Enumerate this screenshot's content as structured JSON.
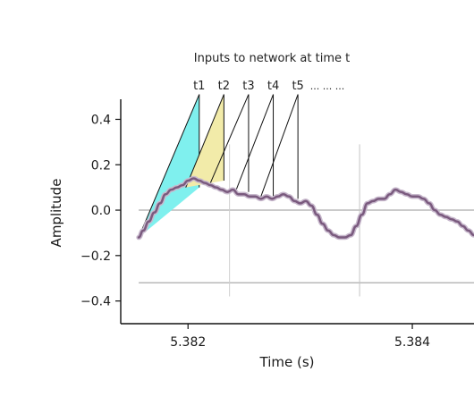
{
  "chart_data": {
    "type": "line",
    "title": "",
    "xlabel": "Time (s)",
    "ylabel": "Amplitude",
    "xlim": [
      5.3814,
      5.38455
    ],
    "ylim": [
      -0.5,
      0.52
    ],
    "x_ticks": [
      5.382,
      5.384
    ],
    "x_tick_labels": [
      "5.382",
      "5.384"
    ],
    "y_ticks": [
      0.4,
      0.2,
      0.0,
      -0.2,
      -0.4
    ],
    "y_tick_labels": [
      "0.4",
      "0.2",
      "0.0",
      "−0.2",
      "−0.4"
    ],
    "grid": false,
    "series": [
      {
        "color": "#7a5a7e",
        "x": [
          5.38156,
          5.3816,
          5.38165,
          5.3817,
          5.38175,
          5.3818,
          5.38185,
          5.3819,
          5.38195,
          5.382,
          5.38205,
          5.3821,
          5.38215,
          5.3822,
          5.38225,
          5.3823,
          5.38235,
          5.3824,
          5.38245,
          5.3825,
          5.38255,
          5.3826,
          5.38265,
          5.3827,
          5.38275,
          5.3828,
          5.38285,
          5.3829,
          5.38295,
          5.383,
          5.38305,
          5.3831,
          5.38315,
          5.3832,
          5.38325,
          5.3833,
          5.38335,
          5.3834,
          5.38345,
          5.3835,
          5.38355,
          5.3836,
          5.38365,
          5.3837,
          5.38375,
          5.3838,
          5.38385,
          5.3839,
          5.38395,
          5.384,
          5.38405,
          5.3841,
          5.38415,
          5.3842,
          5.38425,
          5.3843,
          5.38435,
          5.3844,
          5.38445,
          5.3845,
          5.38455
        ],
        "y": [
          -0.12,
          -0.09,
          -0.05,
          -0.01,
          0.03,
          0.07,
          0.09,
          0.1,
          0.11,
          0.13,
          0.14,
          0.13,
          0.12,
          0.11,
          0.1,
          0.09,
          0.08,
          0.09,
          0.07,
          0.07,
          0.06,
          0.06,
          0.05,
          0.06,
          0.05,
          0.06,
          0.07,
          0.06,
          0.04,
          0.03,
          0.04,
          0.02,
          -0.02,
          -0.06,
          -0.09,
          -0.11,
          -0.12,
          -0.12,
          -0.11,
          -0.07,
          -0.02,
          0.03,
          0.04,
          0.05,
          0.05,
          0.07,
          0.09,
          0.08,
          0.07,
          0.06,
          0.06,
          0.05,
          0.03,
          0.0,
          -0.02,
          -0.03,
          -0.04,
          -0.05,
          -0.07,
          -0.09,
          -0.11
        ]
      }
    ],
    "reference_lines": [
      {
        "orientation": "horizontal",
        "y": 0.0,
        "x_from": 5.38156,
        "x_to": 5.38455,
        "color": "#b8b8b8"
      },
      {
        "orientation": "horizontal",
        "y": -0.32,
        "x_from": 5.38156,
        "x_to": 5.38455,
        "color": "#b8b8b8"
      },
      {
        "orientation": "vertical",
        "x": 5.38237,
        "y_from": -0.38,
        "y_to": 0.29,
        "color": "#d0d0d0"
      },
      {
        "orientation": "vertical",
        "x": 5.38353,
        "y_from": -0.38,
        "y_to": 0.29,
        "color": "#c4c4c4"
      }
    ],
    "annotation": {
      "text": "Inputs to network at time t",
      "window_labels": [
        "t1",
        "t2",
        "t3",
        "t4",
        "t5"
      ],
      "continuation": "... ... ...",
      "windows": [
        {
          "x_start": 5.38156,
          "y_start": -0.12,
          "x_end": 5.3821,
          "y_top": 0.51,
          "y_bottom": 0.1,
          "fill": "#7ff0ee"
        },
        {
          "x_start": 5.38198,
          "y_start": 0.1,
          "x_end": 5.38232,
          "y_top": 0.51,
          "y_bottom": 0.13,
          "fill": "#f2eba9"
        },
        {
          "x_start": 5.3822,
          "y_start": 0.12,
          "x_end": 5.38254,
          "y_top": 0.51,
          "y_bottom": 0.08,
          "fill": "none"
        },
        {
          "x_start": 5.38243,
          "y_start": 0.09,
          "x_end": 5.38276,
          "y_top": 0.51,
          "y_bottom": 0.06,
          "fill": "none"
        },
        {
          "x_start": 5.38265,
          "y_start": 0.06,
          "x_end": 5.38298,
          "y_top": 0.51,
          "y_bottom": 0.05,
          "fill": "none"
        }
      ]
    }
  }
}
